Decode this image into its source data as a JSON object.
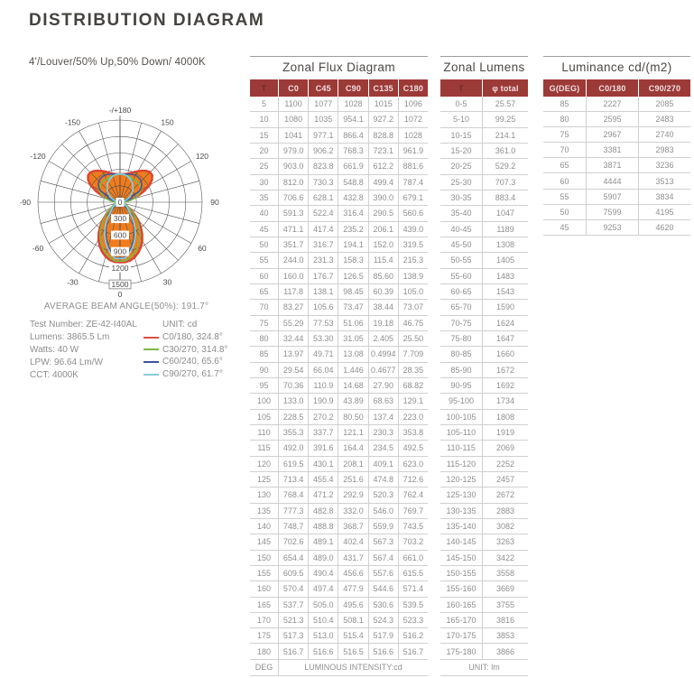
{
  "page": {
    "title": "DISTRIBUTION DIAGRAM",
    "subtitle": "4'/Louver/50% Up,50% Down/ 4000K"
  },
  "polar": {
    "beam_angle_label": "AVERAGE BEAM ANGLE(50%): 191.7°"
  },
  "test_info": {
    "lines": [
      "Test Number: ZE-42-I40AL",
      "Lumens: 3865.5 Lm",
      "Watts: 40 W",
      "LPW: 96.64 Lm/W",
      "CCT: 4000K"
    ]
  },
  "legend": {
    "unit_label": "UNIT: cd",
    "items": [
      {
        "label": "C0/180, 324.8°",
        "color": "#d75046"
      },
      {
        "label": "C30/270, 314.8°",
        "color": "#7bb84a"
      },
      {
        "label": "C60/240, 65.6°",
        "color": "#3a529d"
      },
      {
        "label": "C90/270, 61.7°",
        "color": "#85ccd8"
      }
    ]
  },
  "chart_data": {
    "type": "line",
    "variant": "polar-intensity",
    "title": "Luminous intensity distribution",
    "unit": "cd",
    "r_max": 1500,
    "r_ticks": [
      0,
      300,
      600,
      900,
      1200,
      1500
    ],
    "angle_grid_step": 15,
    "grid_color": "#4c4c4c",
    "fill_color": "#f07c1e",
    "angle_labels": [
      {
        "a": 180,
        "t": "-/+180"
      },
      {
        "a": 150,
        "t": "150"
      },
      {
        "a": 120,
        "t": "120"
      },
      {
        "a": 90,
        "t": "90"
      },
      {
        "a": 60,
        "t": "60"
      },
      {
        "a": 30,
        "t": "30"
      },
      {
        "a": 0,
        "t": "0"
      },
      {
        "a": -30,
        "t": "-30"
      },
      {
        "a": -60,
        "t": "-60"
      },
      {
        "a": -90,
        "t": "-90"
      },
      {
        "a": -120,
        "t": "-120"
      },
      {
        "a": -150,
        "t": "-150"
      }
    ],
    "angles_deg": [
      5,
      10,
      15,
      20,
      25,
      30,
      35,
      40,
      45,
      50,
      55,
      60,
      65,
      70,
      75,
      80,
      85,
      90,
      95,
      100,
      105,
      110,
      115,
      120,
      125,
      130,
      135,
      140,
      145,
      150,
      155,
      160,
      165,
      170,
      175,
      180
    ],
    "series": [
      {
        "name": "C0",
        "values": [
          "1100",
          "1080",
          "1041",
          "979.0",
          "903.0",
          "812.0",
          "706.6",
          "591.3",
          "471.1",
          "351.7",
          "244.0",
          "160.0",
          "117.8",
          "83.27",
          "55.29",
          "32.44",
          "13.97",
          "29.54",
          "70.36",
          "133.0",
          "228.5",
          "355.3",
          "492.0",
          "619.5",
          "713.4",
          "768.4",
          "777.3",
          "748.7",
          "702.6",
          "654.4",
          "609.5",
          "570.4",
          "537.7",
          "521.3",
          "517.3",
          "516.7"
        ]
      },
      {
        "name": "C45",
        "values": [
          "1077",
          "1035",
          "977.1",
          "906.2",
          "823.8",
          "730.3",
          "628.1",
          "522.4",
          "417.4",
          "316.7",
          "231.3",
          "176.7",
          "138.1",
          "105.6",
          "77.53",
          "53.30",
          "49.71",
          "66.04",
          "110.9",
          "190.9",
          "270.2",
          "337.7",
          "391.6",
          "430.1",
          "455.4",
          "471.2",
          "482.8",
          "488.8",
          "489.1",
          "489.0",
          "490.4",
          "497.4",
          "505.0",
          "510.4",
          "513.0",
          "516.6"
        ]
      },
      {
        "name": "C90",
        "values": [
          "1028",
          "954.1",
          "866.4",
          "768.3",
          "661.9",
          "548.8",
          "432.8",
          "316.4",
          "235.2",
          "194.1",
          "158.3",
          "126.5",
          "98.45",
          "73.47",
          "51.06",
          "31.05",
          "13.08",
          "1.446",
          "14.68",
          "43.89",
          "80.50",
          "121.1",
          "164.4",
          "208.1",
          "251.6",
          "292.9",
          "332.0",
          "368.7",
          "402.4",
          "431.7",
          "456.6",
          "477.9",
          "495.6",
          "508.1",
          "515.4",
          "516.5"
        ]
      },
      {
        "name": "C135",
        "values": [
          "1015",
          "927.2",
          "828.8",
          "723.1",
          "612.2",
          "499.4",
          "390.0",
          "290.5",
          "206.1",
          "152.0",
          "115.4",
          "85.60",
          "60.39",
          "38.44",
          "19.18",
          "2.405",
          "0.4994",
          "0.4677",
          "27.90",
          "68.63",
          "137.4",
          "230.3",
          "234.5",
          "409.1",
          "474.8",
          "520.3",
          "546.0",
          "559.9",
          "567.3",
          "567.4",
          "557.6",
          "544.6",
          "530.6",
          "524.3",
          "517.9",
          "516.6"
        ]
      },
      {
        "name": "C180",
        "values": [
          "1096",
          "1072",
          "1028",
          "961.9",
          "881.6",
          "787.4",
          "679.1",
          "560.6",
          "439.0",
          "319.5",
          "215.3",
          "138.9",
          "105.0",
          "73.07",
          "46.75",
          "25.50",
          "7.709",
          "28.35",
          "68.82",
          "129.1",
          "223.0",
          "353.8",
          "492.5",
          "623.0",
          "712.6",
          "762.4",
          "769.7",
          "743.5",
          "703.2",
          "661.0",
          "615.5",
          "571.4",
          "539.5",
          "523.3",
          "516.2",
          "516.7"
        ]
      }
    ],
    "curves": [
      {
        "label": "C0/180",
        "color": "#dd4330",
        "width": 2.4,
        "right": "C0",
        "left": "C180"
      },
      {
        "label": "C30/270",
        "color": "#7bb84a",
        "width": 1.6,
        "right": "C45",
        "left": "C45"
      },
      {
        "label": "C60/240",
        "color": "#3a529d",
        "width": 1.4,
        "right": "C135",
        "left": "C135"
      },
      {
        "label": "C90/270",
        "color": "#85ccd8",
        "width": 1.8,
        "right": "C90",
        "left": "C90"
      }
    ]
  },
  "zonal_flux": {
    "title": "Zonal Flux Diagram",
    "columns": [
      "T",
      "C0",
      "C45",
      "C90",
      "C135",
      "C180"
    ],
    "footer_left": "DEG",
    "footer_right": "LUMINOUS INTENSITY:cd"
  },
  "zonal_lumens": {
    "title": "Zonal Lumens",
    "columns": [
      "T",
      "φ total"
    ],
    "footer": "UNIT: lm",
    "rows": [
      [
        "0-5",
        "25.57"
      ],
      [
        "5-10",
        "99.25"
      ],
      [
        "10-15",
        "214.1"
      ],
      [
        "15-20",
        "361.0"
      ],
      [
        "20-25",
        "529.2"
      ],
      [
        "25-30",
        "707.3"
      ],
      [
        "30-35",
        "883.4"
      ],
      [
        "35-40",
        "1047"
      ],
      [
        "40-45",
        "1189"
      ],
      [
        "45-50",
        "1308"
      ],
      [
        "50-55",
        "1405"
      ],
      [
        "55-60",
        "1483"
      ],
      [
        "60-65",
        "1543"
      ],
      [
        "65-70",
        "1590"
      ],
      [
        "70-75",
        "1624"
      ],
      [
        "75-80",
        "1647"
      ],
      [
        "80-85",
        "1660"
      ],
      [
        "85-90",
        "1672"
      ],
      [
        "90-95",
        "1692"
      ],
      [
        "95-100",
        "1734"
      ],
      [
        "100-105",
        "1808"
      ],
      [
        "105-110",
        "1919"
      ],
      [
        "110-115",
        "2069"
      ],
      [
        "115-120",
        "2252"
      ],
      [
        "120-125",
        "2457"
      ],
      [
        "125-130",
        "2672"
      ],
      [
        "130-135",
        "2883"
      ],
      [
        "135-140",
        "3082"
      ],
      [
        "140-145",
        "3263"
      ],
      [
        "145-150",
        "3422"
      ],
      [
        "150-155",
        "3558"
      ],
      [
        "155-160",
        "3669"
      ],
      [
        "160-165",
        "3755"
      ],
      [
        "165-170",
        "3816"
      ],
      [
        "170-175",
        "3853"
      ],
      [
        "175-180",
        "3866"
      ]
    ]
  },
  "luminance": {
    "title": "Luminance cd/(m2)",
    "columns": [
      "G(DEG)",
      "C0/180",
      "C90/270"
    ],
    "rows": [
      [
        "85",
        "2227",
        "2085"
      ],
      [
        "80",
        "2595",
        "2483"
      ],
      [
        "75",
        "2967",
        "2740"
      ],
      [
        "70",
        "3381",
        "2983"
      ],
      [
        "65",
        "3871",
        "3236"
      ],
      [
        "60",
        "4444",
        "3513"
      ],
      [
        "55",
        "5907",
        "3834"
      ],
      [
        "50",
        "7599",
        "4195"
      ],
      [
        "45",
        "9253",
        "4620"
      ]
    ]
  }
}
